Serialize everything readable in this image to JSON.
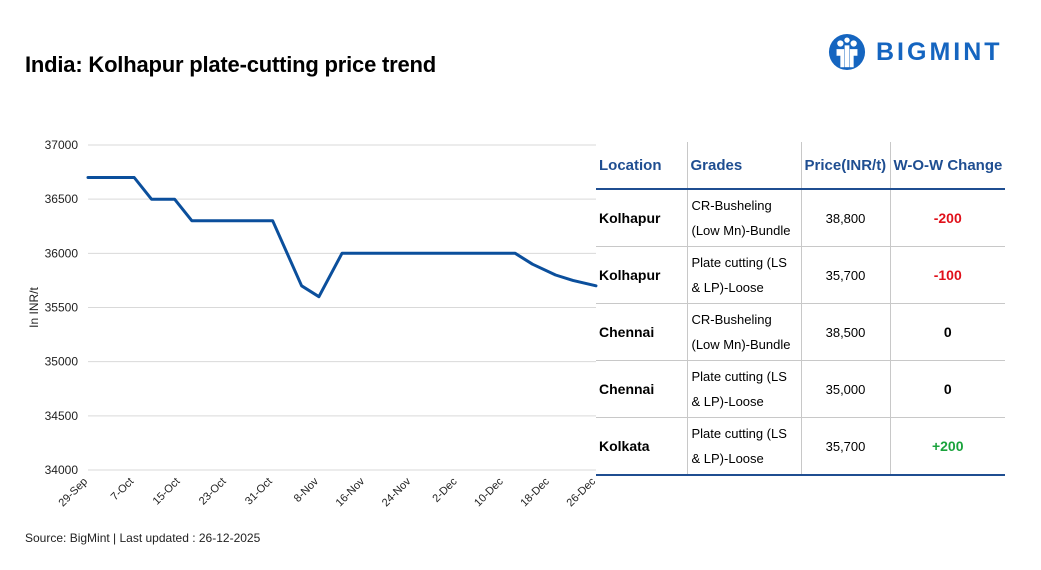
{
  "header": {
    "title": "India: Kolhapur plate-cutting price trend",
    "brand": "BIGMINT"
  },
  "colors": {
    "line": "#0b4f9c",
    "header_text": "#1f4e91",
    "negative": "#e0101a",
    "positive": "#1aa33c",
    "neutral": "#000000",
    "logo": "#1565c0"
  },
  "chart_data": {
    "type": "line",
    "title": "",
    "xlabel": "",
    "ylabel": "In INR/t",
    "ylim": [
      34000,
      37000
    ],
    "yticks": [
      "37000",
      "36500",
      "36000",
      "35500",
      "35000",
      "34500",
      "34000"
    ],
    "x_tick_labels": [
      "29-Sep",
      "7-Oct",
      "15-Oct",
      "23-Oct",
      "31-Oct",
      "8-Nov",
      "16-Nov",
      "24-Nov",
      "2-Dec",
      "10-Dec",
      "18-Dec",
      "26-Dec"
    ],
    "grid": true,
    "legend": "none",
    "series": [
      {
        "x": [
          "2025-09-29",
          "2025-10-03",
          "2025-10-07",
          "2025-10-10",
          "2025-10-14",
          "2025-10-17",
          "2025-10-21",
          "2025-10-24",
          "2025-10-28",
          "2025-10-31",
          "2025-11-05",
          "2025-11-08",
          "2025-11-12",
          "2025-11-15",
          "2025-11-18",
          "2025-11-22",
          "2025-11-26",
          "2025-11-30",
          "2025-12-04",
          "2025-12-08",
          "2025-12-12",
          "2025-12-15",
          "2025-12-19",
          "2025-12-22",
          "2025-12-26"
        ],
        "values": [
          36700,
          36700,
          36700,
          36500,
          36500,
          36300,
          36300,
          36300,
          36300,
          36300,
          35700,
          35600,
          36000,
          36000,
          36000,
          36000,
          36000,
          36000,
          36000,
          36000,
          36000,
          35900,
          35800,
          35750,
          35700
        ]
      }
    ]
  },
  "table": {
    "headers": [
      "Location",
      "Grades",
      "Price(INR/t)",
      "W-O-W Change"
    ],
    "rows": [
      {
        "location": "Kolhapur",
        "grade": "CR-Busheling (Low Mn)-Bundle",
        "price": "38,800",
        "change": "-200",
        "dir": "neg"
      },
      {
        "location": "Kolhapur",
        "grade": "Plate cutting (LS & LP)-Loose",
        "price": "35,700",
        "change": "-100",
        "dir": "neg"
      },
      {
        "location": "Chennai",
        "grade": "CR-Busheling (Low Mn)-Bundle",
        "price": "38,500",
        "change": "0",
        "dir": "zero"
      },
      {
        "location": "Chennai",
        "grade": "Plate cutting (LS & LP)-Loose",
        "price": "35,000",
        "change": "0",
        "dir": "zero"
      },
      {
        "location": "Kolkata",
        "grade": "Plate cutting (LS & LP)-Loose",
        "price": "35,700",
        "change": "+200",
        "dir": "pos"
      }
    ]
  },
  "footer": {
    "source": "Source: BigMint | Last updated : 26-12-2025"
  }
}
